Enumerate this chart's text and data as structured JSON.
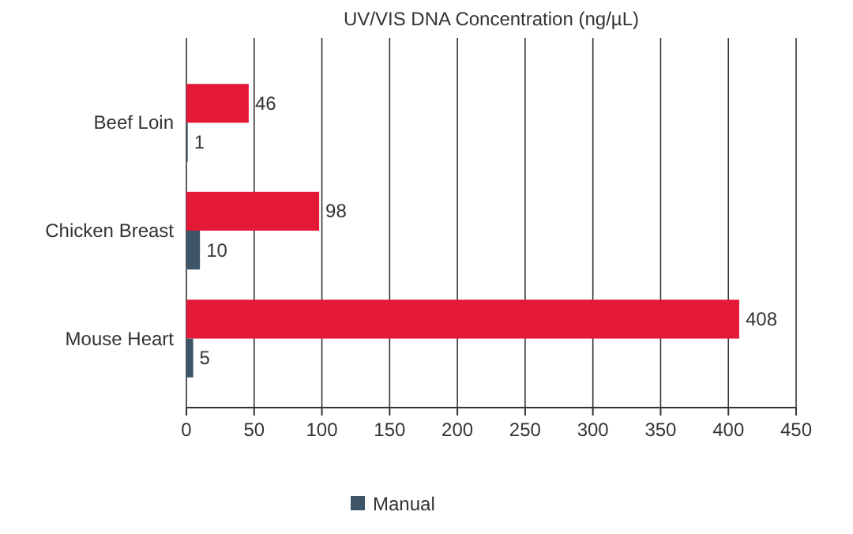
{
  "chart_data": {
    "type": "bar",
    "orientation": "horizontal",
    "title": "UV/VIS DNA Concentration (ng/µL)",
    "categories": [
      "Beef Loin",
      "Chicken Breast",
      "Mouse Heart"
    ],
    "series": [
      {
        "color": "#e31937",
        "values": [
          46,
          98,
          408
        ]
      },
      {
        "name": "Manual",
        "color": "#3d5566",
        "values": [
          1,
          10,
          5
        ]
      }
    ],
    "xlim": [
      0,
      450
    ],
    "xticks": [
      0,
      50,
      100,
      150,
      200,
      250,
      300,
      350,
      400,
      450
    ],
    "grid": "x",
    "legend": "bottom",
    "data_labels": true
  }
}
